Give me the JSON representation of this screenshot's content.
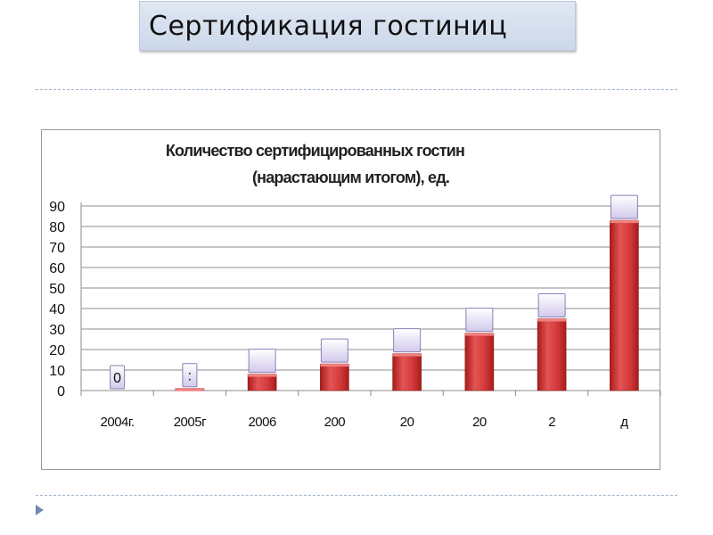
{
  "slide": {
    "title": "Сертификация гостиниц"
  },
  "chart_data": {
    "type": "bar",
    "title_line1": "Количество сертифицированных гостин",
    "title_line2": "(нарастающим итогом), ед.",
    "categories": [
      "2004г.",
      "2005г",
      "2006",
      "200",
      "20",
      "20",
      "2",
      "д"
    ],
    "values": [
      0,
      1,
      8,
      13,
      18,
      28,
      35,
      83
    ],
    "data_labels": [
      "0",
      ":",
      "",
      "",
      "",
      "",
      "",
      ""
    ],
    "ylim": [
      0,
      90
    ],
    "yticks": [
      0,
      10,
      20,
      30,
      40,
      50,
      60,
      70,
      80,
      90
    ],
    "grid": true,
    "legend": "none",
    "colors": {
      "bar_top": "#e35454",
      "bar_bottom": "#b42222",
      "label_box_top": "#ffffff",
      "label_box_bottom": "#d2c9ec",
      "label_box_border": "#8a7fb8",
      "grid": "#8c8c8c"
    }
  }
}
